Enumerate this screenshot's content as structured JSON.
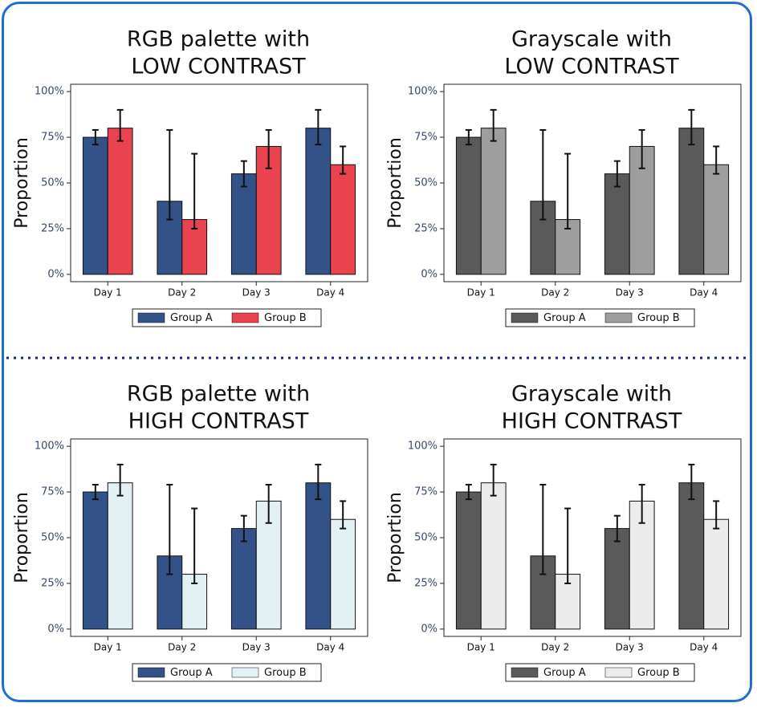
{
  "chart_data": [
    {
      "type": "bar",
      "title": [
        "RGB palette with",
        "LOW CONTRAST"
      ],
      "y_label": "Proportion",
      "categories": [
        "Day 1",
        "Day 2",
        "Day 3",
        "Day 4"
      ],
      "series": [
        {
          "name": "Group A",
          "color": "#335288",
          "values": [
            75,
            40,
            55,
            80
          ],
          "lower": [
            71,
            30,
            48,
            71
          ],
          "upper": [
            79,
            79,
            62,
            90
          ]
        },
        {
          "name": "Group B",
          "color": "#e8434f",
          "values": [
            80,
            30,
            70,
            60
          ],
          "lower": [
            73,
            25,
            58,
            55
          ],
          "upper": [
            90,
            66,
            79,
            70
          ]
        }
      ],
      "ylim": [
        -4,
        104
      ],
      "yticks": [
        {
          "value": 0,
          "label": "0%"
        },
        {
          "value": 25,
          "label": "25%"
        },
        {
          "value": 50,
          "label": "50%"
        },
        {
          "value": 75,
          "label": "75%"
        },
        {
          "value": 100,
          "label": "100%"
        }
      ]
    },
    {
      "type": "bar",
      "title": [
        "Grayscale with",
        "LOW CONTRAST"
      ],
      "y_label": "Proportion",
      "categories": [
        "Day 1",
        "Day 2",
        "Day 3",
        "Day 4"
      ],
      "series": [
        {
          "name": "Group A",
          "color": "#5a5a5a",
          "values": [
            75,
            40,
            55,
            80
          ],
          "lower": [
            71,
            30,
            48,
            71
          ],
          "upper": [
            79,
            79,
            62,
            90
          ]
        },
        {
          "name": "Group B",
          "color": "#9e9e9e",
          "values": [
            80,
            30,
            70,
            60
          ],
          "lower": [
            73,
            25,
            58,
            55
          ],
          "upper": [
            90,
            66,
            79,
            70
          ]
        }
      ],
      "ylim": [
        -4,
        104
      ],
      "yticks": [
        {
          "value": 0,
          "label": "0%"
        },
        {
          "value": 25,
          "label": "25%"
        },
        {
          "value": 50,
          "label": "50%"
        },
        {
          "value": 75,
          "label": "75%"
        },
        {
          "value": 100,
          "label": "100%"
        }
      ]
    },
    {
      "type": "bar",
      "title": [
        "RGB palette with",
        "HIGH CONTRAST"
      ],
      "y_label": "Proportion",
      "categories": [
        "Day 1",
        "Day 2",
        "Day 3",
        "Day 4"
      ],
      "series": [
        {
          "name": "Group A",
          "color": "#335288",
          "values": [
            75,
            40,
            55,
            80
          ],
          "lower": [
            71,
            30,
            48,
            71
          ],
          "upper": [
            79,
            79,
            62,
            90
          ]
        },
        {
          "name": "Group B",
          "color": "#e3f0f4",
          "values": [
            80,
            30,
            70,
            60
          ],
          "lower": [
            73,
            25,
            58,
            55
          ],
          "upper": [
            90,
            66,
            79,
            70
          ]
        }
      ],
      "ylim": [
        -4,
        104
      ],
      "yticks": [
        {
          "value": 0,
          "label": "0%"
        },
        {
          "value": 25,
          "label": "25%"
        },
        {
          "value": 50,
          "label": "50%"
        },
        {
          "value": 75,
          "label": "75%"
        },
        {
          "value": 100,
          "label": "100%"
        }
      ]
    },
    {
      "type": "bar",
      "title": [
        "Grayscale with",
        "HIGH CONTRAST"
      ],
      "y_label": "Proportion",
      "categories": [
        "Day 1",
        "Day 2",
        "Day 3",
        "Day 4"
      ],
      "series": [
        {
          "name": "Group A",
          "color": "#5a5a5a",
          "values": [
            75,
            40,
            55,
            80
          ],
          "lower": [
            71,
            30,
            48,
            71
          ],
          "upper": [
            79,
            79,
            62,
            90
          ]
        },
        {
          "name": "Group B",
          "color": "#ececec",
          "values": [
            80,
            30,
            70,
            60
          ],
          "lower": [
            73,
            25,
            58,
            55
          ],
          "upper": [
            90,
            66,
            79,
            70
          ]
        }
      ],
      "ylim": [
        -4,
        104
      ],
      "yticks": [
        {
          "value": 0,
          "label": "0%"
        },
        {
          "value": 25,
          "label": "25%"
        },
        {
          "value": 50,
          "label": "50%"
        },
        {
          "value": 75,
          "label": "75%"
        },
        {
          "value": 100,
          "label": "100%"
        }
      ]
    }
  ]
}
